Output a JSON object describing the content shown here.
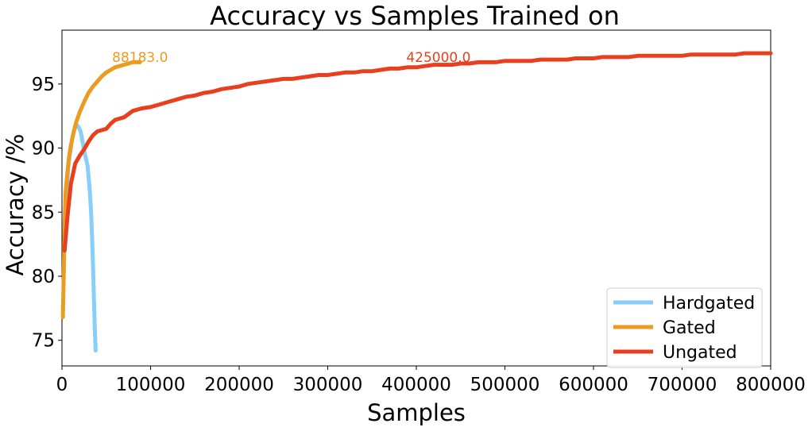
{
  "chart_data": {
    "type": "line",
    "title": "Accuracy vs Samples Trained on",
    "xlabel": "Samples",
    "ylabel": "Accuracy /%",
    "xlim": [
      0,
      800000
    ],
    "ylim": [
      73,
      99.2
    ],
    "xticks": [
      0,
      100000,
      200000,
      300000,
      400000,
      500000,
      600000,
      700000,
      800000
    ],
    "xtick_labels": [
      "0",
      "100000",
      "200000",
      "300000",
      "400000",
      "500000",
      "600000",
      "700000",
      "800000"
    ],
    "yticks": [
      75,
      80,
      85,
      90,
      95
    ],
    "ytick_labels": [
      "75",
      "80",
      "85",
      "90",
      "95"
    ],
    "grid": false,
    "legend_position": "bottom-right",
    "series": [
      {
        "name": "Hardgated",
        "color": "#87cefa",
        "x": [
          3000,
          5000,
          7000,
          9000,
          11000,
          13000,
          15000,
          17000,
          19000,
          21000,
          23000,
          25000,
          27000,
          29000,
          30000,
          31000,
          32000,
          33000,
          34000,
          35000,
          36000,
          37000,
          38000
        ],
        "y": [
          82,
          86,
          88.5,
          89.5,
          90.5,
          91.2,
          91.6,
          91.8,
          91.6,
          91.3,
          90.6,
          89.8,
          89.2,
          88.6,
          87.8,
          87,
          86,
          84.8,
          83,
          81,
          78.5,
          76,
          74.2
        ]
      },
      {
        "name": "Gated",
        "color": "#eb9c20",
        "x": [
          1000,
          2000,
          3000,
          4000,
          6000,
          8000,
          10000,
          13000,
          16000,
          20000,
          25000,
          30000,
          35000,
          40000,
          45000,
          50000,
          55000,
          60000,
          65000,
          70000,
          75000,
          80000,
          85000,
          88183
        ],
        "y": [
          76.8,
          80,
          84,
          86.5,
          88,
          89.3,
          90.2,
          91.2,
          92,
          92.8,
          93.6,
          94.3,
          94.8,
          95.2,
          95.6,
          95.9,
          96.1,
          96.3,
          96.4,
          96.5,
          96.6,
          96.7,
          96.7,
          96.7
        ]
      },
      {
        "name": "Ungated",
        "color": "#e8401f",
        "x": [
          3000,
          6000,
          10000,
          15000,
          20000,
          25000,
          30000,
          35000,
          40000,
          45000,
          50000,
          55000,
          60000,
          65000,
          70000,
          80000,
          90000,
          100000,
          110000,
          120000,
          130000,
          140000,
          150000,
          160000,
          170000,
          180000,
          190000,
          200000,
          210000,
          220000,
          230000,
          240000,
          250000,
          260000,
          270000,
          280000,
          290000,
          300000,
          310000,
          320000,
          330000,
          340000,
          350000,
          360000,
          370000,
          380000,
          390000,
          400000,
          410000,
          420000,
          425000,
          430000,
          440000,
          450000,
          460000,
          470000,
          480000,
          490000,
          500000,
          510000,
          520000,
          530000,
          540000,
          550000,
          560000,
          570000,
          580000,
          590000,
          600000,
          610000,
          620000,
          630000,
          640000,
          650000,
          660000,
          670000,
          680000,
          690000,
          700000,
          710000,
          720000,
          730000,
          740000,
          750000,
          760000,
          770000,
          780000,
          790000,
          800000
        ],
        "y": [
          82,
          84.5,
          87.2,
          88.8,
          89.4,
          89.9,
          90.5,
          91.0,
          91.3,
          91.4,
          91.5,
          91.9,
          92.2,
          92.3,
          92.4,
          92.9,
          93.1,
          93.2,
          93.4,
          93.6,
          93.8,
          94.0,
          94.1,
          94.3,
          94.4,
          94.6,
          94.7,
          94.8,
          95.0,
          95.1,
          95.2,
          95.3,
          95.4,
          95.4,
          95.5,
          95.6,
          95.7,
          95.7,
          95.8,
          95.9,
          95.9,
          96.0,
          96.0,
          96.1,
          96.2,
          96.2,
          96.3,
          96.3,
          96.4,
          96.5,
          96.5,
          96.5,
          96.5,
          96.6,
          96.6,
          96.7,
          96.7,
          96.7,
          96.8,
          96.8,
          96.8,
          96.8,
          96.9,
          96.9,
          96.9,
          96.9,
          97.0,
          97.0,
          97.0,
          97.1,
          97.1,
          97.1,
          97.1,
          97.2,
          97.2,
          97.2,
          97.2,
          97.2,
          97.2,
          97.3,
          97.3,
          97.3,
          97.3,
          97.3,
          97.3,
          97.4,
          97.4,
          97.4,
          97.4
        ]
      }
    ],
    "annotations": [
      {
        "text": "88183.0",
        "x": 88183,
        "y": 97.1,
        "color": "#eb9c20"
      },
      {
        "text": "425000.0",
        "x": 425000,
        "y": 97.1,
        "color": "#e8401f"
      }
    ]
  }
}
